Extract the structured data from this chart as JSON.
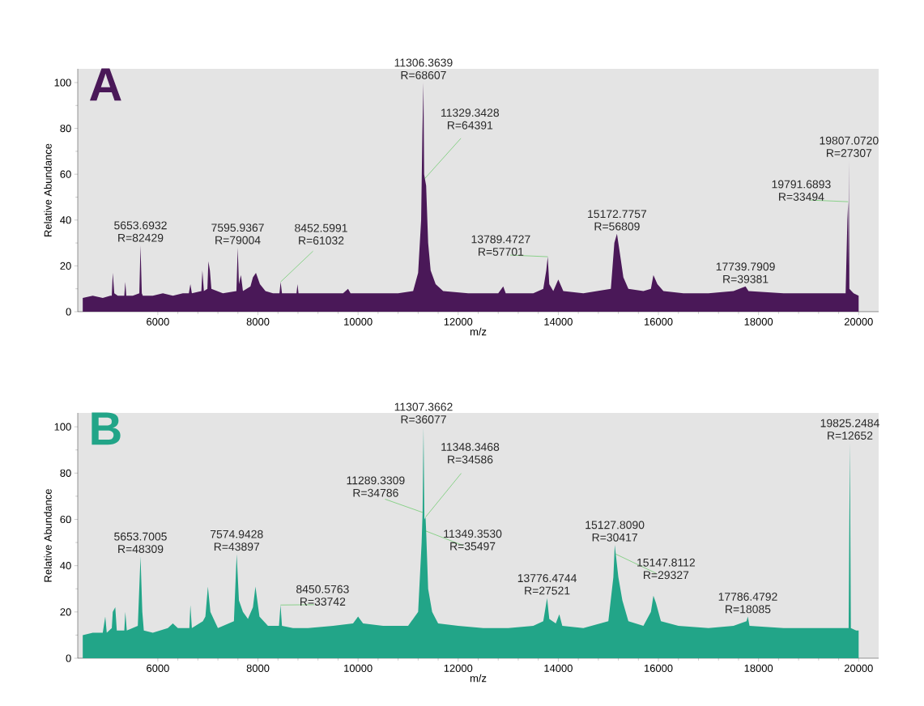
{
  "chart_data": [
    {
      "type": "area",
      "color": "#4a1858",
      "xlabel": "m/z",
      "ylabel": "Relative Abundance",
      "xlim": [
        4400,
        20400
      ],
      "ylim": [
        0,
        106
      ],
      "xticks": [
        6000,
        8000,
        10000,
        12000,
        14000,
        16000,
        18000,
        20000
      ],
      "yticks": [
        0,
        20,
        40,
        60,
        80,
        100
      ],
      "x": [
        4500,
        4700,
        4900,
        5050,
        5080,
        5100,
        5130,
        5200,
        5330,
        5350,
        5370,
        5500,
        5630,
        5654,
        5680,
        5700,
        5900,
        6100,
        6300,
        6500,
        6620,
        6650,
        6680,
        6870,
        6890,
        6920,
        6990,
        7010,
        7040,
        7070,
        7300,
        7570,
        7596,
        7620,
        7660,
        7700,
        7850,
        7900,
        7960,
        8040,
        8150,
        8300,
        8430,
        8453,
        8480,
        8770,
        8790,
        8810,
        9200,
        9700,
        9800,
        9850,
        10300,
        10800,
        11100,
        11200,
        11260,
        11285,
        11306,
        11320,
        11335,
        11360,
        11400,
        11450,
        11550,
        11700,
        12200,
        12800,
        12900,
        12950,
        13500,
        13700,
        13760,
        13789,
        13820,
        13900,
        14000,
        14100,
        14500,
        15050,
        15120,
        15172,
        15220,
        15300,
        15400,
        15700,
        15850,
        15900,
        15980,
        16100,
        16500,
        17000,
        17500,
        17740,
        17800,
        18500,
        19000,
        19500,
        19740,
        19775,
        19791,
        19800,
        19807,
        19815,
        19900,
        20000
      ],
      "values": [
        6,
        7,
        6,
        7,
        7,
        17,
        8,
        7,
        7,
        13,
        7,
        7,
        8,
        29,
        8,
        7,
        7,
        8,
        7,
        8,
        8,
        12,
        8,
        9,
        18,
        9,
        10,
        22,
        18,
        10,
        8,
        9,
        28,
        12,
        16,
        9,
        11,
        15,
        17,
        12,
        9,
        8,
        8,
        13,
        8,
        8,
        12,
        8,
        8,
        8,
        10,
        8,
        8,
        8,
        9,
        17,
        40,
        78,
        100,
        60,
        58,
        55,
        30,
        18,
        12,
        9,
        8,
        8,
        11,
        8,
        8,
        10,
        18,
        24,
        12,
        9,
        14,
        9,
        8,
        10,
        30,
        34,
        27,
        15,
        10,
        9,
        10,
        16,
        12,
        9,
        8,
        8,
        9,
        11,
        9,
        8,
        8,
        8,
        8,
        40,
        48,
        20,
        66,
        10,
        8,
        7
      ],
      "annotations": [
        "A",
        {
          "text": "5653.6932 R=82429",
          "x": 5653.6932,
          "y": 29
        },
        {
          "text": "7595.9367 R=79004",
          "x": 7595.9367,
          "y": 28
        },
        {
          "text": "8452.5991 R=61032",
          "x": 8452.5991,
          "y": 13
        },
        {
          "text": "11306.3639 R=68607",
          "x": 11306.3639,
          "y": 100
        },
        {
          "text": "11329.3428 R=64391",
          "x": 11329.3428,
          "y": 58
        },
        {
          "text": "13789.4727 R=57701",
          "x": 13789.4727,
          "y": 24
        },
        {
          "text": "15172.7757 R=56809",
          "x": 15172.7757,
          "y": 34
        },
        {
          "text": "17739.7909 R=39381",
          "x": 17739.7909,
          "y": 11
        },
        {
          "text": "19791.6893 R=33494",
          "x": 19791.6893,
          "y": 48
        },
        {
          "text": "19807.0720 R=27307",
          "x": 19807.072,
          "y": 66
        }
      ]
    },
    {
      "type": "area",
      "color": "#22a588",
      "xlabel": "m/z",
      "ylabel": "Relative Abundance",
      "xlim": [
        4400,
        20400
      ],
      "ylim": [
        0,
        106
      ],
      "xticks": [
        6000,
        8000,
        10000,
        12000,
        14000,
        16000,
        18000,
        20000
      ],
      "yticks": [
        0,
        20,
        40,
        60,
        80,
        100
      ],
      "x": [
        4500,
        4700,
        4900,
        4950,
        4980,
        5080,
        5100,
        5150,
        5180,
        5330,
        5350,
        5380,
        5600,
        5654,
        5690,
        5720,
        5900,
        6200,
        6300,
        6400,
        6630,
        6650,
        6680,
        6900,
        6950,
        7000,
        7050,
        7200,
        7520,
        7575,
        7620,
        7700,
        7800,
        7900,
        7950,
        8030,
        8200,
        8420,
        8451,
        8480,
        8700,
        9000,
        9500,
        9900,
        10000,
        10100,
        10500,
        11000,
        11200,
        11270,
        11289,
        11307,
        11325,
        11348,
        11360,
        11400,
        11480,
        11600,
        12000,
        12500,
        13000,
        13500,
        13700,
        13776,
        13820,
        13950,
        14020,
        14080,
        14500,
        15000,
        15100,
        15128,
        15148,
        15200,
        15280,
        15400,
        15700,
        15850,
        15900,
        15950,
        16050,
        16400,
        17000,
        17500,
        17760,
        17786,
        17820,
        18500,
        19000,
        19500,
        19800,
        19825,
        19845,
        19950,
        20000
      ],
      "values": [
        10,
        11,
        11,
        18,
        11,
        13,
        20,
        22,
        12,
        12,
        20,
        12,
        14,
        44,
        20,
        12,
        11,
        13,
        15,
        13,
        13,
        23,
        13,
        16,
        18,
        31,
        20,
        13,
        16,
        45,
        25,
        20,
        17,
        22,
        31,
        18,
        14,
        14,
        23,
        14,
        13,
        13,
        14,
        15,
        18,
        15,
        14,
        14,
        20,
        50,
        63,
        100,
        60,
        61,
        55,
        30,
        20,
        15,
        14,
        13,
        13,
        14,
        16,
        26,
        17,
        15,
        19,
        14,
        13,
        16,
        35,
        49,
        45,
        35,
        25,
        16,
        14,
        20,
        27,
        24,
        16,
        14,
        13,
        14,
        16,
        18,
        14,
        13,
        13,
        13,
        13,
        93,
        13,
        12,
        12
      ],
      "annotations": [
        "B",
        {
          "text": "5653.7005 R=48309",
          "x": 5653.7005,
          "y": 44
        },
        {
          "text": "7574.9428 R=43897",
          "x": 7574.9428,
          "y": 45
        },
        {
          "text": "8450.5763 R=33742",
          "x": 8450.5763,
          "y": 23
        },
        {
          "text": "11307.3662 R=36077",
          "x": 11307.3662,
          "y": 100
        },
        {
          "text": "11289.3309 R=34786",
          "x": 11289.3309,
          "y": 63
        },
        {
          "text": "11348.3468 R=34586",
          "x": 11348.3468,
          "y": 61
        },
        {
          "text": "11349.3530 R=35497",
          "x": 11349.353,
          "y": 55
        },
        {
          "text": "13776.4744 R=27521",
          "x": 13776.4744,
          "y": 26
        },
        {
          "text": "15127.8090 R=30417",
          "x": 15127.809,
          "y": 49
        },
        {
          "text": "15147.8112 R=29327",
          "x": 15147.8112,
          "y": 45
        },
        {
          "text": "17786.4792 R=18085",
          "x": 17786.4792,
          "y": 18
        },
        {
          "text": "19825.2484 R=12652",
          "x": 19825.2484,
          "y": 93
        }
      ]
    }
  ]
}
